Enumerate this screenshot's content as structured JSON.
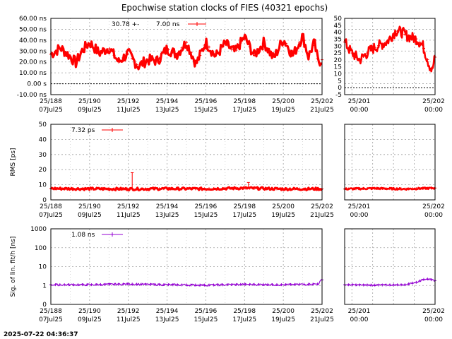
{
  "chart_data": {
    "type": "line",
    "title": "Epochwise station clocks of FIES (40321 epochs)",
    "timestamp": "2025-07-22 04:36:37",
    "x_tick_labels": {
      "main": [
        {
          "doy": "25/188",
          "date": "07Jul25"
        },
        {
          "doy": "25/190",
          "date": "09Jul25"
        },
        {
          "doy": "25/192",
          "date": "11Jul25"
        },
        {
          "doy": "25/194",
          "date": "13Jul25"
        },
        {
          "doy": "25/196",
          "date": "15Jul25"
        },
        {
          "doy": "25/198",
          "date": "17Jul25"
        },
        {
          "doy": "25/200",
          "date": "19Jul25"
        },
        {
          "doy": "25/202",
          "date": "21Jul25"
        }
      ],
      "zoom": [
        {
          "doy": "25/201",
          "date": "00:00"
        },
        {
          "doy": "25/202",
          "date": "00:00"
        }
      ]
    },
    "panels": [
      {
        "id": "clock",
        "ylabel": "",
        "y_tick_labels": [
          "60.00 ns",
          "50.00 ns",
          "40.00 ns",
          "30.00 ns",
          "20.00 ns",
          "10.00 ns",
          "0.00  s",
          "-10.00 ns"
        ],
        "y_ticks": [
          60,
          50,
          40,
          30,
          20,
          10,
          0,
          -10
        ],
        "ylim": [
          -10,
          60
        ],
        "zoom_y_tick_labels": [
          "50",
          "45",
          "40",
          "35",
          "30",
          "25",
          "20",
          "15",
          "10",
          "5",
          "0",
          "-5"
        ],
        "zoom_y_ticks": [
          50,
          45,
          40,
          35,
          30,
          25,
          20,
          15,
          10,
          5,
          0,
          -5
        ],
        "zoom_ylim": [
          -5,
          50
        ],
        "zero_line": true,
        "legend": {
          "mean": "30.78 +-",
          "value": "7.00 ns"
        },
        "color": "#ff0000",
        "main_x": [
          188,
          188.5,
          189,
          189.3,
          189.6,
          190,
          190.5,
          191,
          191.5,
          192,
          192.5,
          193,
          193.5,
          194,
          194.5,
          195,
          195.5,
          196,
          196.5,
          197,
          197.5,
          198,
          198.5,
          199,
          199.5,
          200,
          200.5,
          201,
          201.3,
          201.6,
          201.8,
          202
        ],
        "main_y": [
          27,
          33,
          25,
          19,
          30,
          38,
          28,
          33,
          20,
          28,
          16,
          22,
          21,
          32,
          27,
          38,
          18,
          38,
          25,
          37,
          29,
          43,
          26,
          38,
          23,
          41,
          26,
          44,
          25,
          38,
          20,
          22
        ],
        "main_spread": 5,
        "zoom_x": [
          200.5,
          200.6,
          200.75,
          200.9,
          201,
          201.2,
          201.35,
          201.45,
          201.55,
          201.7,
          201.8,
          201.9,
          201.95,
          202
        ],
        "zoom_y": [
          33,
          26,
          20,
          26,
          29,
          33,
          41,
          40,
          37,
          35,
          30,
          17,
          12,
          22
        ],
        "zoom_spread": 4
      },
      {
        "id": "rms",
        "ylabel": "RMS [ps]",
        "y_tick_labels": [
          "50",
          "40",
          "30",
          "20",
          "10",
          "0"
        ],
        "y_ticks": [
          50,
          40,
          30,
          20,
          10,
          0
        ],
        "ylim": [
          0,
          50
        ],
        "legend": {
          "value": "7.32 ps"
        },
        "color": "#ff0000",
        "main_x": [
          188,
          190,
          192,
          194,
          196,
          198,
          200,
          202
        ],
        "main_y": [
          7.5,
          7.3,
          7.2,
          7.4,
          7.3,
          7.8,
          7.2,
          7.3
        ],
        "main_spread": 0.8,
        "spikes": [
          {
            "x": 192.2,
            "y": 18
          },
          {
            "x": 198.2,
            "y": 11.5
          }
        ],
        "zoom_x": [
          200.5,
          201,
          201.5,
          202
        ],
        "zoom_y": [
          7.2,
          7.6,
          7.2,
          7.8
        ],
        "zoom_spread": 0.6
      },
      {
        "id": "sig",
        "ylabel": "Sig. of lin. fit/h [ns]",
        "y_tick_labels": [
          "1000",
          "100",
          "10",
          "1",
          "0"
        ],
        "y_ticks": [
          1000,
          100,
          10,
          1,
          0.1
        ],
        "ylim": [
          0.1,
          1000
        ],
        "log": true,
        "legend": {
          "value": "1.08 ns"
        },
        "color": "#9400d3",
        "main_x": [
          188,
          190,
          192,
          194,
          196,
          198,
          200,
          201.8,
          202
        ],
        "main_y": [
          1.1,
          1.1,
          1.2,
          1.1,
          1.05,
          1.15,
          1.1,
          1.2,
          2.0
        ],
        "main_spread": 0.25,
        "zoom_x": [
          200.5,
          201,
          201.5,
          201.7,
          201.85,
          202
        ],
        "zoom_y": [
          1.1,
          1.05,
          1.1,
          1.5,
          2.3,
          1.8
        ],
        "zoom_spread": 0.2
      }
    ],
    "grid": true,
    "main_xlim": [
      188,
      202
    ],
    "zoom_xlim": [
      200.5,
      202
    ]
  }
}
